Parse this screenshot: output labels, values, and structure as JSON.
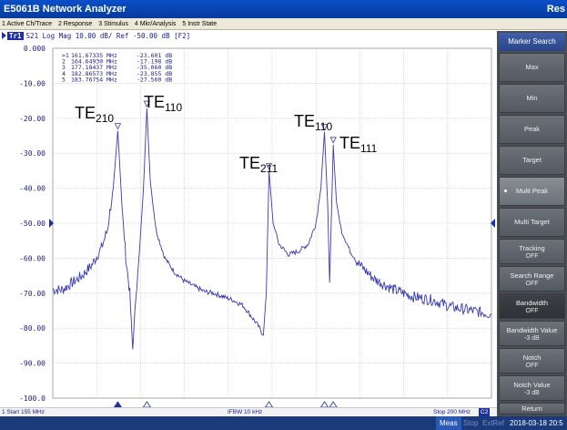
{
  "app": {
    "title": "E5061B Network Analyzer",
    "title_right": "Res"
  },
  "menu": {
    "items": [
      "1 Active Ch/Trace",
      "2 Response",
      "3 Stimulus",
      "4 Mkr/Analysis",
      "5 Instr State"
    ]
  },
  "trace": {
    "id": "Tr1",
    "label": "S21 Log Mag 10.00 dB/ Ref -50.00 dB [F2]"
  },
  "markers": [
    {
      "label": ">1",
      "freq": "161.67335 MHz",
      "value": "-23.601 dB"
    },
    {
      "label": "2",
      "freq": "164.64930 MHz",
      "value": "-17.198 dB"
    },
    {
      "label": "3",
      "freq": "177.18437 MHz",
      "value": "-35.060 dB"
    },
    {
      "label": "4",
      "freq": "182.86573 MHz",
      "value": "-23.855 dB"
    },
    {
      "label": "5",
      "freq": "183.76754 MHz",
      "value": "-27.560 dB"
    }
  ],
  "annotations": [
    {
      "main": "TE",
      "sub": "210"
    },
    {
      "main": "TE",
      "sub": "110"
    },
    {
      "main": "TE",
      "sub": "211"
    },
    {
      "main": "TE",
      "sub": "110"
    },
    {
      "main": "TE",
      "sub": "111"
    }
  ],
  "axis": {
    "y_ticks": [
      "0.000",
      "-10.00",
      "-20.00",
      "-30.00",
      "-40.00",
      "-50.00",
      "-60.00",
      "-70.00",
      "-80.00",
      "-90.00",
      "-100.0"
    ]
  },
  "status": {
    "start": "1  Start 155 MHz",
    "ifbw": "IFBW 10 kHz",
    "stop": "Stop 200 MHz",
    "c2": "C2"
  },
  "bottom": {
    "meas": "Meas",
    "stop": "Stop",
    "extref": "ExtRef",
    "datetime": "2018-03-18 20:5"
  },
  "softkeys": {
    "header": "Marker Search",
    "items": [
      {
        "l1": "Max",
        "l2": ""
      },
      {
        "l1": "Min",
        "l2": ""
      },
      {
        "l1": "Peak",
        "l2": ""
      },
      {
        "l1": "Target",
        "l2": ""
      },
      {
        "l1": "Multi Peak",
        "l2": ""
      },
      {
        "l1": "Multi Target",
        "l2": ""
      },
      {
        "l1": "Tracking",
        "l2": "OFF"
      },
      {
        "l1": "Search Range",
        "l2": "OFF"
      },
      {
        "l1": "Bandwidth",
        "l2": "OFF"
      },
      {
        "l1": "Bandwidth Value",
        "l2": "-3 dB"
      },
      {
        "l1": "Notch",
        "l2": "OFF"
      },
      {
        "l1": "Notch Value",
        "l2": "-3 dB"
      },
      {
        "l1": "Return",
        "l2": ""
      }
    ]
  },
  "colors": {
    "trace": "#3a3ab4",
    "grid": "#c8c8c8",
    "label": "#1a1a8a"
  },
  "chart_data": {
    "type": "line",
    "x_unit": "MHz",
    "y_unit": "dB",
    "xlim": [
      155,
      200
    ],
    "ylim": [
      -100,
      0
    ],
    "grid": true,
    "series": [
      {
        "values_xy": [
          [
            155,
            -69
          ],
          [
            156,
            -69
          ],
          [
            157,
            -67
          ],
          [
            158,
            -65
          ],
          [
            159,
            -62
          ],
          [
            160,
            -57
          ],
          [
            160.6,
            -52
          ],
          [
            161.2,
            -40
          ],
          [
            161.67,
            -23.6
          ],
          [
            162.1,
            -45
          ],
          [
            162.5,
            -60
          ],
          [
            162.9,
            -70
          ],
          [
            163.2,
            -86
          ],
          [
            163.5,
            -72
          ],
          [
            163.9,
            -58
          ],
          [
            164.3,
            -40
          ],
          [
            164.65,
            -17.2
          ],
          [
            165.0,
            -38
          ],
          [
            165.6,
            -52
          ],
          [
            166.5,
            -60
          ],
          [
            167.5,
            -64
          ],
          [
            168.5,
            -66.5
          ],
          [
            169.5,
            -68
          ],
          [
            170.5,
            -69.5
          ],
          [
            171.5,
            -70
          ],
          [
            172.5,
            -71
          ],
          [
            173.5,
            -72
          ],
          [
            174.5,
            -73.5
          ],
          [
            175.2,
            -76
          ],
          [
            176,
            -79
          ],
          [
            176.6,
            -82
          ],
          [
            176.9,
            -70
          ],
          [
            177.18,
            -35.1
          ],
          [
            177.6,
            -50
          ],
          [
            178.2,
            -56
          ],
          [
            179.2,
            -59
          ],
          [
            180.2,
            -58
          ],
          [
            181.2,
            -56
          ],
          [
            182.0,
            -50
          ],
          [
            182.5,
            -40
          ],
          [
            182.87,
            -23.9
          ],
          [
            183.2,
            -45
          ],
          [
            183.4,
            -67
          ],
          [
            183.77,
            -27.6
          ],
          [
            184.1,
            -44
          ],
          [
            184.6,
            -52
          ],
          [
            185.5,
            -58
          ],
          [
            186.5,
            -62
          ],
          [
            188,
            -66
          ],
          [
            190,
            -69
          ],
          [
            192,
            -71
          ],
          [
            194,
            -72
          ],
          [
            196,
            -74
          ],
          [
            198,
            -75
          ],
          [
            200,
            -76
          ]
        ]
      }
    ],
    "markers_xy": [
      [
        161.67,
        -23.6
      ],
      [
        164.65,
        -17.2
      ],
      [
        177.18,
        -35.06
      ],
      [
        182.87,
        -23.86
      ],
      [
        183.77,
        -27.56
      ]
    ]
  }
}
